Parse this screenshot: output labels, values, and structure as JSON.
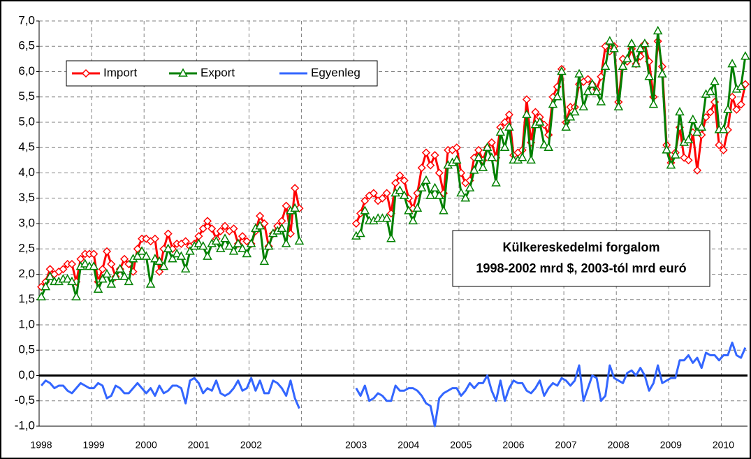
{
  "chart_data": {
    "type": "line",
    "annotations": [
      "Külkereskedelmi forgalom",
      "1998-2002 mrd $, 2003-tól mrd euró"
    ],
    "categories": [
      "1998",
      null,
      null,
      null,
      null,
      null,
      null,
      null,
      null,
      null,
      null,
      null,
      "1999",
      null,
      null,
      null,
      null,
      null,
      null,
      null,
      null,
      null,
      null,
      null,
      "2000",
      null,
      null,
      null,
      null,
      null,
      null,
      null,
      null,
      null,
      null,
      null,
      "2001",
      null,
      null,
      null,
      null,
      null,
      null,
      null,
      null,
      null,
      null,
      null,
      "2002",
      null,
      null,
      null,
      null,
      null,
      null,
      null,
      null,
      null,
      null,
      null,
      null,
      null,
      null,
      null,
      null,
      null,
      null,
      null,
      null,
      null,
      null,
      null,
      "2003",
      null,
      null,
      null,
      null,
      null,
      null,
      null,
      null,
      null,
      null,
      null,
      "2004",
      null,
      null,
      null,
      null,
      null,
      null,
      null,
      null,
      null,
      null,
      null,
      "2005",
      null,
      null,
      null,
      null,
      null,
      null,
      null,
      null,
      null,
      null,
      null,
      "2006",
      null,
      null,
      null,
      null,
      null,
      null,
      null,
      null,
      null,
      null,
      null,
      "2007",
      null,
      null,
      null,
      null,
      null,
      null,
      null,
      null,
      null,
      null,
      null,
      "2008",
      null,
      null,
      null,
      null,
      null,
      null,
      null,
      null,
      null,
      null,
      null,
      "2009",
      null,
      null,
      null,
      null,
      null,
      null,
      null,
      null,
      null,
      null,
      null,
      "2010",
      null,
      null,
      null,
      null,
      null
    ],
    "series": [
      {
        "name": "Import",
        "color": "#ff0000",
        "marker": "diamond",
        "values": [
          1.75,
          1.85,
          2.1,
          2.0,
          2.05,
          2.1,
          2.2,
          2.2,
          1.85,
          2.3,
          2.4,
          2.4,
          2.4,
          1.85,
          2.1,
          2.45,
          2.2,
          1.95,
          2.1,
          2.3,
          2.2,
          2.05,
          2.5,
          2.7,
          2.7,
          2.65,
          2.7,
          2.05,
          2.5,
          2.8,
          2.5,
          2.6,
          2.6,
          2.65,
          2.55,
          2.6,
          2.75,
          2.9,
          3.05,
          2.9,
          2.7,
          2.85,
          2.95,
          2.85,
          2.9,
          2.6,
          2.75,
          2.65,
          2.6,
          2.85,
          3.15,
          3.0,
          2.55,
          2.8,
          2.95,
          3.05,
          3.35,
          2.8,
          3.7,
          3.3,
          null,
          null,
          null,
          null,
          null,
          null,
          null,
          null,
          null,
          null,
          null,
          null,
          3.0,
          3.2,
          3.45,
          3.55,
          3.6,
          3.45,
          3.5,
          3.6,
          3.2,
          3.8,
          3.95,
          3.85,
          3.5,
          3.3,
          3.6,
          4.1,
          4.4,
          4.15,
          4.35,
          4.0,
          3.6,
          4.45,
          4.45,
          4.5,
          4.0,
          3.8,
          3.85,
          4.3,
          4.45,
          4.25,
          4.5,
          4.6,
          4.3,
          4.9,
          5.0,
          5.15,
          4.35,
          4.4,
          4.45,
          5.45,
          4.6,
          5.2,
          5.1,
          4.95,
          4.75,
          5.5,
          5.7,
          6.05,
          5.0,
          5.3,
          5.3,
          5.75,
          5.8,
          5.85,
          5.75,
          5.65,
          5.9,
          6.5,
          6.4,
          6.5,
          5.4,
          6.25,
          6.2,
          6.45,
          6.15,
          6.3,
          6.55,
          6.2,
          5.5,
          6.6,
          6.1,
          4.55,
          4.2,
          4.4,
          4.9,
          4.3,
          4.25,
          4.8,
          4.05,
          4.75,
          5.1,
          5.2,
          5.4,
          4.55,
          4.45,
          4.85,
          5.5,
          5.25,
          5.35,
          5.75
        ]
      },
      {
        "name": "Export",
        "color": "#008000",
        "marker": "triangle",
        "values": [
          1.55,
          1.75,
          1.95,
          1.85,
          1.85,
          1.9,
          1.9,
          1.85,
          1.55,
          2.15,
          2.2,
          2.15,
          2.15,
          1.7,
          1.9,
          2.0,
          1.8,
          1.95,
          2.1,
          1.95,
          1.85,
          2.3,
          2.35,
          2.45,
          2.35,
          1.8,
          2.3,
          2.25,
          2.15,
          2.5,
          2.3,
          2.4,
          2.35,
          2.1,
          2.45,
          2.55,
          2.6,
          2.55,
          2.35,
          2.6,
          2.65,
          2.5,
          2.7,
          2.55,
          2.45,
          2.6,
          2.5,
          2.4,
          2.6,
          2.9,
          2.95,
          2.25,
          2.55,
          2.8,
          2.85,
          2.9,
          2.6,
          3.25,
          3.3,
          2.65,
          null,
          null,
          null,
          null,
          null,
          null,
          null,
          null,
          null,
          null,
          null,
          null,
          2.75,
          2.8,
          3.25,
          3.05,
          3.05,
          3.1,
          3.1,
          3.1,
          2.7,
          3.6,
          3.65,
          3.55,
          3.25,
          3.05,
          3.3,
          3.7,
          3.85,
          3.55,
          3.7,
          3.55,
          3.25,
          4.15,
          4.2,
          4.25,
          3.6,
          3.5,
          3.7,
          4.05,
          4.3,
          4.1,
          4.5,
          4.3,
          3.8,
          4.8,
          4.5,
          4.9,
          4.25,
          4.25,
          4.3,
          5.15,
          4.25,
          4.95,
          5.0,
          4.55,
          4.5,
          5.35,
          5.5,
          6.0,
          4.9,
          5.1,
          5.2,
          5.95,
          5.3,
          5.6,
          5.75,
          5.6,
          5.4,
          6.1,
          6.6,
          6.45,
          5.3,
          6.1,
          6.25,
          6.55,
          6.15,
          6.45,
          6.55,
          5.9,
          5.35,
          6.8,
          5.95,
          4.45,
          4.15,
          4.35,
          5.2,
          4.6,
          4.65,
          5.05,
          4.8,
          4.9,
          5.55,
          5.6,
          5.8,
          4.85,
          4.85,
          5.25,
          6.15,
          5.65,
          5.7,
          6.3
        ]
      },
      {
        "name": "Egyenleg",
        "color": "#3366ff",
        "values": [
          -0.2,
          -0.1,
          -0.15,
          -0.25,
          -0.2,
          -0.2,
          -0.3,
          -0.35,
          -0.25,
          -0.15,
          -0.2,
          -0.25,
          -0.25,
          -0.15,
          -0.2,
          -0.45,
          -0.4,
          -0.2,
          -0.25,
          -0.35,
          -0.35,
          -0.25,
          -0.15,
          -0.25,
          -0.35,
          -0.25,
          -0.4,
          -0.2,
          -0.35,
          -0.3,
          -0.2,
          -0.2,
          -0.25,
          -0.55,
          -0.1,
          -0.05,
          -0.15,
          -0.35,
          -0.25,
          -0.3,
          -0.1,
          -0.35,
          -0.4,
          -0.35,
          -0.25,
          -0.1,
          -0.3,
          -0.25,
          -0.05,
          -0.3,
          -0.1,
          -0.35,
          -0.35,
          -0.1,
          -0.15,
          -0.25,
          -0.4,
          -0.1,
          -0.45,
          -0.65,
          null,
          null,
          null,
          null,
          null,
          null,
          null,
          null,
          null,
          null,
          null,
          null,
          -0.25,
          -0.4,
          -0.2,
          -0.5,
          -0.45,
          -0.35,
          -0.4,
          -0.5,
          -0.5,
          -0.2,
          -0.3,
          -0.3,
          -0.25,
          -0.25,
          -0.3,
          -0.4,
          -0.55,
          -0.6,
          -1.0,
          -0.45,
          -0.35,
          -0.3,
          -0.25,
          -0.25,
          -0.4,
          -0.3,
          -0.15,
          -0.25,
          -0.15,
          -0.15,
          0.0,
          -0.3,
          -0.5,
          -0.1,
          -0.5,
          -0.25,
          -0.1,
          -0.15,
          -0.15,
          -0.3,
          -0.35,
          -0.25,
          -0.1,
          -0.4,
          -0.25,
          -0.15,
          -0.2,
          -0.05,
          -0.1,
          -0.2,
          -0.1,
          0.2,
          -0.5,
          -0.25,
          0.0,
          -0.05,
          -0.5,
          -0.4,
          0.2,
          -0.05,
          -0.1,
          -0.15,
          0.05,
          0.1,
          0.0,
          0.15,
          0.0,
          -0.3,
          -0.15,
          0.2,
          -0.15,
          -0.1,
          -0.05,
          -0.05,
          0.3,
          0.3,
          0.4,
          0.25,
          0.35,
          0.15,
          0.45,
          0.4,
          0.4,
          0.3,
          0.4,
          0.4,
          0.65,
          0.4,
          0.35,
          0.55
        ]
      }
    ],
    "ylim": [
      -1,
      7
    ],
    "yticks": [
      {
        "value": -1,
        "label": "-1,0"
      },
      {
        "value": -0.5,
        "label": "-0,5"
      },
      {
        "value": 0,
        "label": "0,0"
      },
      {
        "value": 0.5,
        "label": "0,5"
      },
      {
        "value": 1,
        "label": "1,0"
      },
      {
        "value": 1.5,
        "label": "1,5"
      },
      {
        "value": 2,
        "label": "2,0"
      },
      {
        "value": 2.5,
        "label": "2,5"
      },
      {
        "value": 3,
        "label": "3,0"
      },
      {
        "value": 3.5,
        "label": "3,5"
      },
      {
        "value": 4,
        "label": "4,0"
      },
      {
        "value": 4.5,
        "label": "4,5"
      },
      {
        "value": 5,
        "label": "5,0"
      },
      {
        "value": 5.5,
        "label": "5,5"
      },
      {
        "value": 6,
        "label": "6,0"
      },
      {
        "value": 6.5,
        "label": "6,5"
      },
      {
        "value": 7,
        "label": "7,0"
      }
    ],
    "grid": true,
    "legend": "top-left"
  }
}
